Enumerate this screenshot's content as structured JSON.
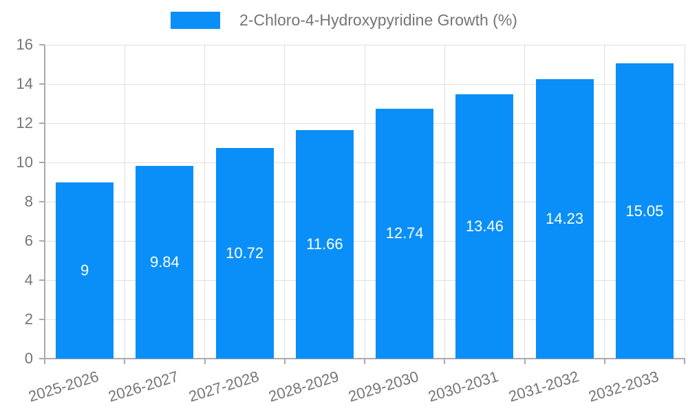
{
  "legend": {
    "label": "2-Chloro-4-Hydroxypyridine Growth (%)"
  },
  "chart_data": {
    "type": "bar",
    "title": "2-Chloro-4-Hydroxypyridine Growth (%)",
    "categories": [
      "2025-2026",
      "2026-2027",
      "2027-2028",
      "2028-2029",
      "2029-2030",
      "2030-2031",
      "2031-2032",
      "2032-2033"
    ],
    "values": [
      9,
      9.84,
      10.72,
      11.66,
      12.74,
      13.46,
      14.23,
      15.05
    ],
    "data_labels": [
      "9",
      "9.84",
      "10.72",
      "11.66",
      "12.74",
      "13.46",
      "14.23",
      "15.05"
    ],
    "series_name": "2-Chloro-4-Hydroxypyridine Growth (%)",
    "ylim": [
      0,
      16
    ],
    "yticks": [
      0,
      2,
      4,
      6,
      8,
      10,
      12,
      14,
      16
    ],
    "grid": true,
    "legend_position": "top",
    "xlabel_rotation_deg": -17
  },
  "colors": {
    "bar": "#0a8ff8",
    "grid_line": "#e0e0e0",
    "axis_line": "#aaaaaa",
    "tick_text": "#757575",
    "bar_label_text": "#ffffff",
    "background": "#ffffff"
  }
}
